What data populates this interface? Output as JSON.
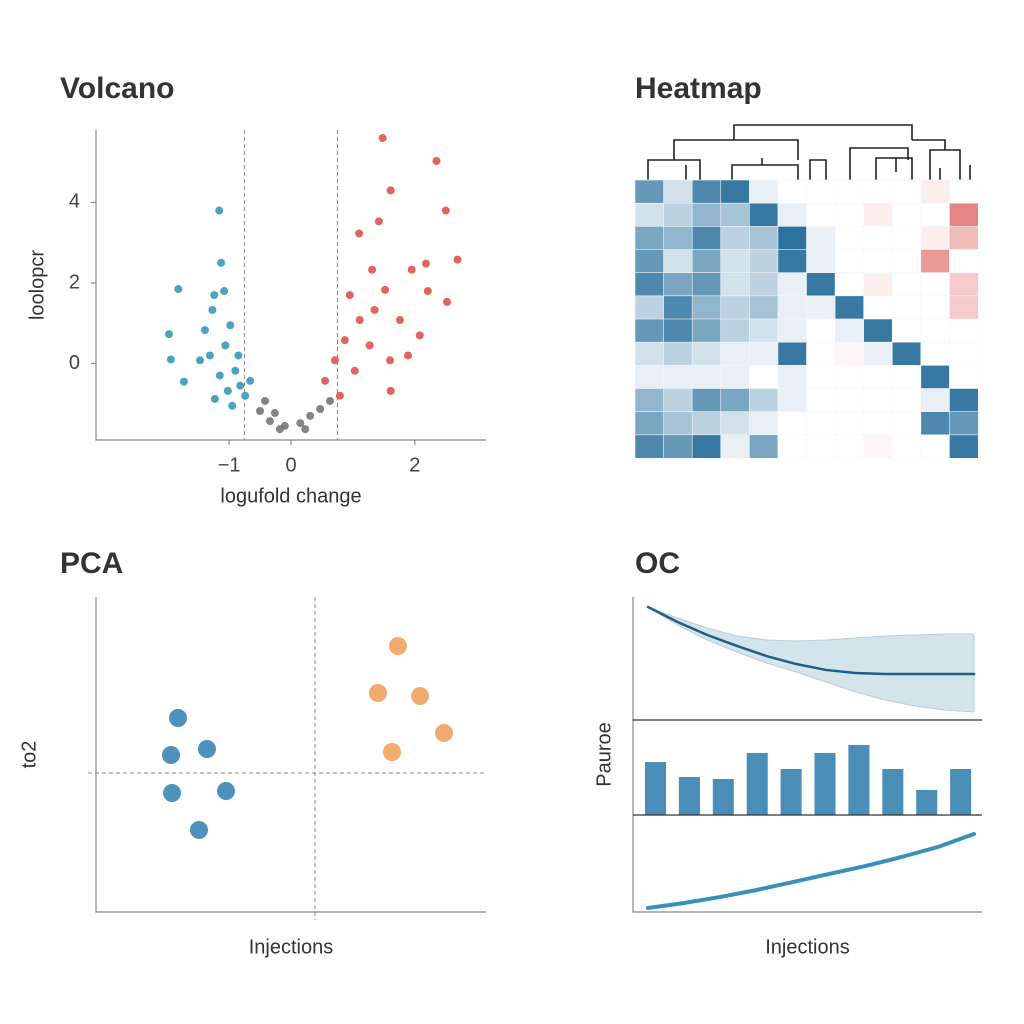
{
  "chart_data": [
    {
      "type": "scatter",
      "title": "Volcano",
      "xlabel": "logufold change",
      "ylabel": "loolopcr",
      "xlim": [
        -3.15,
        3.15
      ],
      "ylim": [
        -1.9,
        5.8
      ],
      "xticks": [
        {
          "value": -1,
          "label": "−1"
        },
        0,
        2
      ],
      "yticks": [
        0,
        2,
        4
      ],
      "thresholds": [
        -0.75,
        0.75
      ],
      "series": [
        {
          "color": "#3a98b9",
          "x": [
            -1.16,
            -1.13,
            -1.82,
            -1.08,
            -1.24,
            -1.97,
            -1.94,
            -1.73,
            -1.23,
            -1.39,
            -0.98,
            -1.31,
            -1.06,
            -0.9,
            -0.82,
            -1.15,
            -0.74,
            -0.95,
            -0.66,
            -1.27,
            -0.85,
            -1.47,
            -1.02
          ],
          "y": [
            3.8,
            2.5,
            1.85,
            1.8,
            1.7,
            0.73,
            0.1,
            -0.45,
            -0.88,
            0.83,
            0.95,
            0.2,
            0.45,
            -0.18,
            -0.55,
            -0.3,
            -0.8,
            -1.05,
            -0.43,
            1.33,
            0.2,
            0.08,
            -0.68
          ]
        },
        {
          "color": "#777777",
          "x": [
            -0.5,
            -0.34,
            -0.18,
            -0.1,
            0.15,
            0.31,
            0.47,
            -0.42,
            0.63,
            -0.26,
            0.23
          ],
          "y": [
            -1.18,
            -1.43,
            -1.63,
            -1.55,
            -1.48,
            -1.3,
            -1.13,
            -0.93,
            -0.93,
            -1.23,
            -1.63
          ]
        },
        {
          "color": "#e0524b",
          "x": [
            1.48,
            2.35,
            1.61,
            2.5,
            1.42,
            2.69,
            2.18,
            1.95,
            2.21,
            2.52,
            1.1,
            1.31,
            0.95,
            1.52,
            1.76,
            2.08,
            1.11,
            0.87,
            1.27,
            1.6,
            0.71,
            0.55,
            1.03,
            0.79,
            1.61,
            1.35,
            1.89
          ],
          "y": [
            5.6,
            5.03,
            4.3,
            3.8,
            3.53,
            2.58,
            2.48,
            2.33,
            1.8,
            1.53,
            3.23,
            2.33,
            1.7,
            1.83,
            1.08,
            0.7,
            1.08,
            0.58,
            0.45,
            0.08,
            0.08,
            -0.43,
            -0.18,
            -0.8,
            -0.68,
            1.33,
            0.2
          ]
        }
      ]
    },
    {
      "type": "heatmap",
      "title": "Heatmap",
      "vlim": [
        -1,
        1
      ],
      "colors": [
        "#d9534f",
        "#ffffff",
        "#226a99"
      ],
      "values": [
        [
          0.7,
          0.2,
          0.8,
          0.9,
          0.1,
          0,
          0,
          0,
          0,
          0,
          -0.1,
          0
        ],
        [
          0.2,
          0.3,
          0.5,
          0.4,
          0.9,
          0.1,
          0,
          0,
          -0.1,
          0,
          0,
          -0.7
        ],
        [
          0.6,
          0.5,
          0.8,
          0.3,
          0.4,
          0.95,
          0.1,
          0,
          0,
          0,
          -0.1,
          -0.4
        ],
        [
          0.7,
          0.2,
          0.6,
          0.2,
          0.3,
          0.9,
          0.1,
          0,
          0,
          0,
          -0.6,
          0
        ],
        [
          0.8,
          0.6,
          0.7,
          0.2,
          0.3,
          0.1,
          0.9,
          0,
          -0.1,
          0,
          0,
          -0.3
        ],
        [
          0.3,
          0.8,
          0.5,
          0.3,
          0.4,
          0.1,
          0.1,
          0.9,
          0,
          0,
          0,
          -0.3
        ],
        [
          0.7,
          0.8,
          0.6,
          0.3,
          0.2,
          0.1,
          0,
          0.1,
          0.9,
          0,
          0,
          0
        ],
        [
          0.2,
          0.3,
          0.2,
          0.1,
          0.1,
          0.9,
          0,
          -0.05,
          0.1,
          0.9,
          0,
          0
        ],
        [
          0.1,
          0.1,
          0.1,
          0.1,
          0,
          0.1,
          0,
          0,
          0,
          0,
          0.9,
          0
        ],
        [
          0.5,
          0.3,
          0.7,
          0.6,
          0.3,
          0.1,
          0,
          0,
          0,
          0,
          0.1,
          0.9
        ],
        [
          0.6,
          0.4,
          0.3,
          0.2,
          0.1,
          0,
          0,
          0,
          0,
          0,
          0.8,
          0.7
        ],
        [
          0.8,
          0.7,
          0.9,
          0.1,
          0.6,
          0,
          0,
          0,
          -0.05,
          0,
          0,
          0.9
        ]
      ]
    },
    {
      "type": "scatter",
      "title": "PCA",
      "xlabel": "Injections",
      "ylabel": "to2",
      "xlim": [
        -4.38,
        3.42
      ],
      "ylim": [
        -2.78,
        3.52
      ],
      "hline": 0,
      "vline": 0,
      "series": [
        {
          "color": "#3d85b5",
          "x": [
            -2.74,
            -2.88,
            -2.16,
            -2.86,
            -1.78,
            -2.32
          ],
          "y": [
            1.1,
            0.36,
            0.48,
            -0.4,
            -0.36,
            -1.14
          ]
        },
        {
          "color": "#f0a25e",
          "x": [
            1.66,
            1.26,
            2.1,
            2.58,
            1.54
          ],
          "y": [
            2.54,
            1.6,
            1.54,
            0.8,
            0.42
          ]
        }
      ]
    },
    {
      "type": "stack",
      "title": "OC",
      "xlabel": "Injections",
      "ylabel": "Pauroe",
      "panels": [
        {
          "type": "band",
          "ylim": [
            0,
            10
          ],
          "color": "#1f5f85",
          "band_color": "#c9dde6",
          "values": [
            9.19,
            7.97,
            6.91,
            6.02,
            5.2,
            4.55,
            4.07,
            3.82,
            3.74,
            3.74,
            3.74,
            3.74
          ],
          "lower": [
            9.19,
            7.72,
            6.5,
            5.53,
            4.63,
            3.9,
            3.09,
            2.28,
            1.63,
            1.14,
            0.81,
            0.65
          ],
          "upper": [
            9.19,
            8.29,
            7.48,
            6.83,
            6.5,
            6.42,
            6.5,
            6.67,
            6.83,
            6.91,
            6.99,
            6.99
          ]
        },
        {
          "type": "bar",
          "ylim": [
            0,
            10
          ],
          "color": "#4a8db7",
          "values": [
            5.58,
            4.0,
            3.79,
            6.53,
            4.84,
            6.53,
            7.37,
            4.84,
            2.63,
            4.84
          ]
        },
        {
          "type": "line",
          "ylim": [
            0,
            10
          ],
          "color": "#3a90b8",
          "values": [
            0.41,
            0.93,
            1.55,
            2.27,
            3.09,
            3.92,
            4.74,
            5.67,
            6.7,
            8.04
          ]
        }
      ]
    }
  ]
}
